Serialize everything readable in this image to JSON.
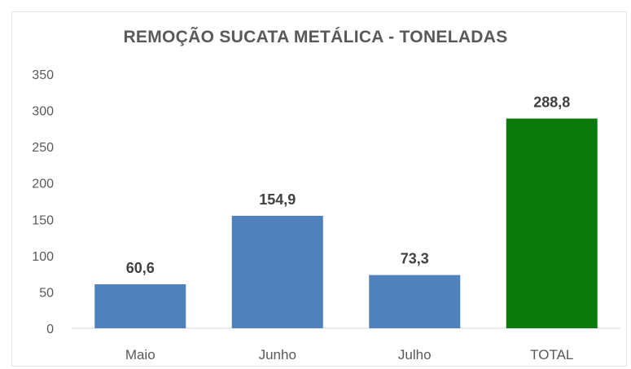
{
  "chart_data": {
    "type": "bar",
    "title": "REMOÇÃO SUCATA METÁLICA - TONELADAS",
    "categories": [
      "Maio",
      "Junho",
      "Julho",
      "TOTAL"
    ],
    "values": [
      60.6,
      154.9,
      73.3,
      288.8
    ],
    "data_labels": [
      "60,6",
      "154,9",
      "73,3",
      "288,8"
    ],
    "bar_colors": [
      "#4f81bd",
      "#4f81bd",
      "#4f81bd",
      "#0b7a0b"
    ],
    "ylim": [
      0,
      350
    ],
    "yticks": [
      0,
      50,
      100,
      150,
      200,
      250,
      300,
      350
    ],
    "grid": false,
    "legend": "none",
    "xlabel": "",
    "ylabel": ""
  }
}
